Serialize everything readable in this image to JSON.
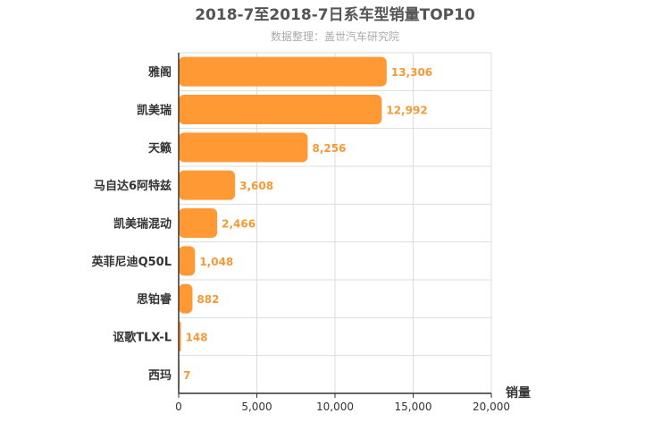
{
  "title": "2018-7至2018-7日系车型销量TOP10",
  "subtitle": "数据整理：盖世汽车研究院",
  "colors": {
    "bar": "#ff9933",
    "value_label": "#f59a36",
    "grid": "#dddddd",
    "axis": "#333333"
  },
  "chart_data": {
    "type": "bar",
    "orientation": "horizontal",
    "categories": [
      "雅阁",
      "凯美瑞",
      "天籁",
      "马自达6阿特兹",
      "凯美瑞混动",
      "英菲尼迪Q50L",
      "思铂睿",
      "讴歌TLX-L",
      "西玛"
    ],
    "values": [
      13306,
      12992,
      8256,
      3608,
      2466,
      1048,
      882,
      148,
      7
    ],
    "value_labels": [
      "13,306",
      "12,992",
      "8,256",
      "3,608",
      "2,466",
      "1,048",
      "882",
      "148",
      "7"
    ],
    "xlabel": "销量",
    "xlim": [
      0,
      20000
    ],
    "xticks": [
      0,
      5000,
      10000,
      15000,
      20000
    ],
    "xtick_labels": [
      "0",
      "5,000",
      "10,000",
      "15,000",
      "20,000"
    ],
    "grid": true
  }
}
